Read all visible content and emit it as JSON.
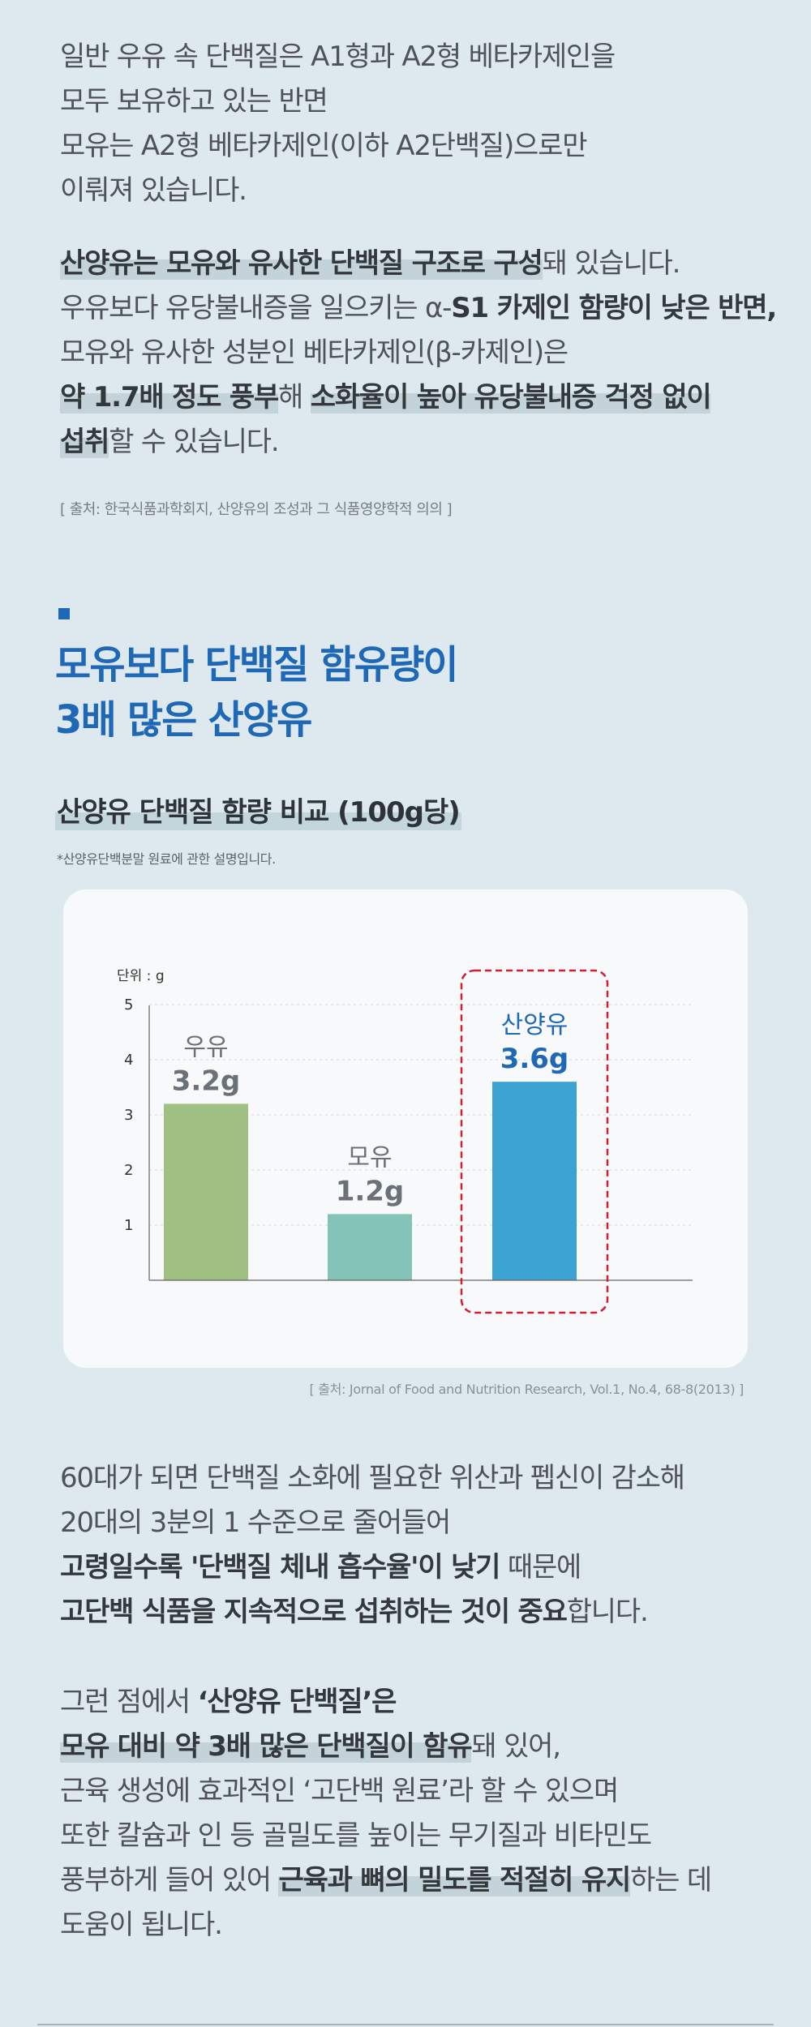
{
  "intro": {
    "lines": [
      "일반 우유 속 단백질은 A1형과 A2형 베타카제인을",
      "모두 보유하고 있는 반면",
      "모유는 A2형 베타카제인(이하 A2단백질)으로만",
      "이뤄져 있습니다."
    ]
  },
  "para2": {
    "l1_hl": "산양유는 모유와 유사한 단백질 구조로 구성",
    "l1_rest": "돼 있습니다.",
    "l2_pre": "우유보다 유당불내증을 일으키는 α-",
    "l2_bold": "S1 카제인 함량이 낮은 반면,",
    "l3": "모유와 유사한 성분인 베타카제인(β-카제인)은",
    "l4_hl1": "약 1.7배 정도 풍부",
    "l4_mid": "해 ",
    "l4_hl2": "소화율이 높아 유당불내증 걱정 없이",
    "l5_hl": "섭취",
    "l5_rest": "할 수 있습니다."
  },
  "source1": "[ 출처: 한국식품과학회지, 산양유의 조성과 그 식품영양학적 의의 ]",
  "section": {
    "title_line1": "모유보다 단백질 함유량이",
    "title_line2": "3배 많은 산양유"
  },
  "subheading": "산양유 단백질 함량 비교 (100g당)",
  "note": "*산양유단백분말 원료에 관한 설명입니다.",
  "colors": {
    "cow": "#a0bf83",
    "human": "#84c4b8",
    "goat": "#3aa3d1",
    "highlight_box": "#d0202d",
    "brand_blue": "#1f68b5",
    "label_gray": "#6b7178"
  },
  "chart_data": {
    "type": "bar",
    "unit_label": "단위 : g",
    "categories": [
      "우유",
      "모유",
      "산양유"
    ],
    "values": [
      3.2,
      1.2,
      3.6
    ],
    "value_labels": [
      "3.2g",
      "1.2g",
      "3.6g"
    ],
    "yticks": [
      1,
      2,
      3,
      4,
      5
    ],
    "ylim": [
      0,
      5
    ],
    "grid": "dotted horizontal",
    "highlight": "산양유"
  },
  "source2": "[ 출처: Jornal of Food and Nutrition Research, Vol.1, No.4, 68-8(2013) ]",
  "para3": {
    "l1": "60대가 되면 단백질 소화에 필요한 위산과 펩신이 감소해",
    "l2": "20대의 3분의 1 수준으로 줄어들어",
    "l3_bold": "고령일수록 '단백질 체내 흡수율'이 낮기",
    "l3_rest": " 때문에",
    "l4_bold": "고단백 식품을 지속적으로 섭취하는 것이 중요",
    "l4_rest": "합니다."
  },
  "para4": {
    "l1_pre": "그런 점에서 ",
    "l1_bold": "‘산양유 단백질’은",
    "l2_hl": "모유 대비 약 3배 많은 단백질이 함유",
    "l2_rest": "돼 있어,",
    "l3": "근육 생성에 효과적인 ‘고단백 원료’라 할 수 있으며",
    "l4": "또한 칼슘과 인 등 골밀도를 높이는 무기질과 비타민도",
    "l5_pre": "풍부하게 들어 있어 ",
    "l5_hl": "근육과 뼈의 밀도를 적절히 유지",
    "l5_rest": "하는 데",
    "l6": "도움이 됩니다."
  }
}
